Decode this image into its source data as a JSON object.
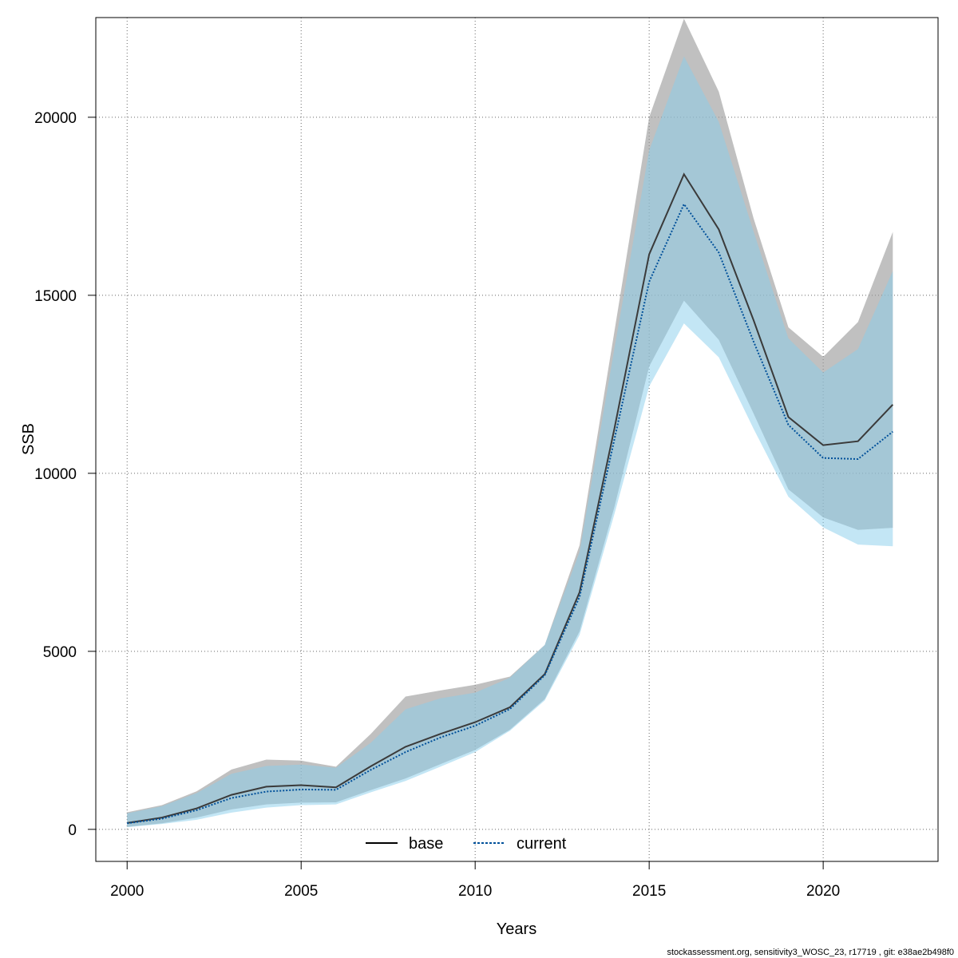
{
  "chart_data": {
    "type": "line",
    "xlabel": "Years",
    "ylabel": "SSB",
    "xlim": [
      1999.1,
      2023.3
    ],
    "ylim": [
      -900,
      22800
    ],
    "x_ticks": [
      2000,
      2005,
      2010,
      2015,
      2020
    ],
    "x_tick_labels": [
      "2000",
      "2005",
      "2010",
      "2015",
      "2020"
    ],
    "y_ticks": [
      0,
      5000,
      10000,
      15000,
      20000
    ],
    "y_tick_labels": [
      "0",
      "5000",
      "10000",
      "15000",
      "20000"
    ],
    "grid": true,
    "legend_position": "bottom",
    "x": [
      2000,
      2001,
      2002,
      2003,
      2004,
      2005,
      2006,
      2007,
      2008,
      2009,
      2010,
      2011,
      2012,
      2013,
      2014,
      2015,
      2016,
      2017,
      2018,
      2019,
      2020,
      2021,
      2022
    ],
    "series": [
      {
        "name": "base",
        "line_color": "#3a3a3a",
        "band_color": "#999999",
        "line_style": "solid",
        "values": [
          180,
          330,
          590,
          970,
          1200,
          1240,
          1180,
          1770,
          2320,
          2680,
          3010,
          3430,
          4360,
          6660,
          11250,
          16150,
          18400,
          16850,
          14300,
          11580,
          10790,
          10900,
          11930
        ],
        "lower": [
          70,
          170,
          330,
          560,
          700,
          750,
          760,
          1100,
          1430,
          1830,
          2230,
          2800,
          3660,
          5560,
          9050,
          13000,
          14850,
          13750,
          11680,
          9550,
          8760,
          8410,
          8470
        ],
        "upper": [
          480,
          680,
          1070,
          1680,
          1960,
          1930,
          1760,
          2680,
          3730,
          3900,
          4060,
          4290,
          5180,
          7980,
          13980,
          20000,
          22770,
          20720,
          17160,
          14100,
          13270,
          14250,
          16780
        ]
      },
      {
        "name": "current",
        "line_color": "#00509a",
        "band_color": "#87ceeb",
        "line_style": "dotted",
        "values": [
          170,
          300,
          540,
          880,
          1060,
          1120,
          1110,
          1670,
          2170,
          2580,
          2910,
          3380,
          4330,
          6530,
          10950,
          15380,
          17560,
          16200,
          13700,
          11360,
          10430,
          10400,
          11170
        ],
        "lower": [
          60,
          150,
          270,
          470,
          610,
          680,
          700,
          1040,
          1360,
          1760,
          2170,
          2770,
          3620,
          5460,
          8850,
          12440,
          14210,
          13260,
          11250,
          9340,
          8480,
          8000,
          7950
        ],
        "upper": [
          450,
          650,
          1020,
          1560,
          1780,
          1820,
          1730,
          2430,
          3370,
          3680,
          3840,
          4260,
          5180,
          7790,
          13500,
          19070,
          21710,
          19870,
          16790,
          13790,
          12830,
          13490,
          15680
        ]
      }
    ]
  },
  "footer": "stockassessment.org, sensitivity3_WOSC_23, r17719 , git: e38ae2b498f0"
}
